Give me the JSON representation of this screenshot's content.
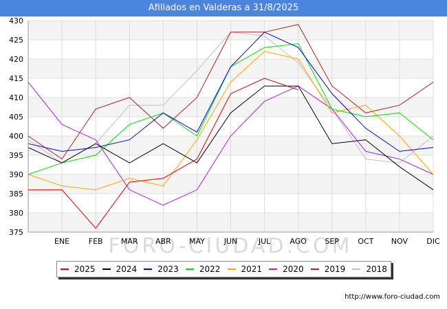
{
  "chart_data": {
    "type": "line",
    "title": "Afiliados en Valderas a 31/8/2025",
    "categories": [
      "",
      "ENE",
      "FEB",
      "MAR",
      "ABR",
      "MAY",
      "JUN",
      "JUL",
      "AGO",
      "SEP",
      "OCT",
      "NOV",
      "DIC"
    ],
    "ylim": [
      375,
      430
    ],
    "yticks": [
      375,
      380,
      385,
      390,
      395,
      400,
      405,
      410,
      415,
      420,
      425,
      430
    ],
    "grid": true,
    "legend_position": "bottom",
    "watermark": "FORO-CIUDAD.COM",
    "series": [
      {
        "name": "2025",
        "color": "#dd0000",
        "values": [
          386,
          386,
          376,
          388,
          389,
          394,
          411,
          415,
          412,
          null,
          null,
          null,
          null
        ]
      },
      {
        "name": "2024",
        "color": "#000000",
        "values": [
          397,
          393,
          398,
          393,
          398,
          393,
          406,
          413,
          413,
          398,
          399,
          392,
          386
        ]
      },
      {
        "name": "2023",
        "color": "#0000dd",
        "values": [
          398,
          396,
          397,
          399,
          406,
          401,
          418,
          427,
          423,
          411,
          402,
          396,
          397
        ]
      },
      {
        "name": "2022",
        "color": "#00dd00",
        "values": [
          390,
          393,
          395,
          403,
          406,
          400,
          418,
          423,
          424,
          407,
          405,
          406,
          399
        ]
      },
      {
        "name": "2021",
        "color": "#ffa500",
        "values": [
          390,
          387,
          386,
          389,
          387,
          399,
          414,
          422,
          420,
          406,
          408,
          400,
          390
        ]
      },
      {
        "name": "2020",
        "color": "#a020f0",
        "values": [
          414,
          403,
          399,
          386,
          382,
          386,
          400,
          409,
          413,
          407,
          396,
          394,
          390
        ]
      },
      {
        "name": "2019",
        "color": "#aa2222",
        "values": [
          400,
          394,
          407,
          410,
          402,
          410,
          427,
          427,
          429,
          413,
          406,
          408,
          414
        ]
      },
      {
        "name": "2018",
        "color": "#c0c0c0",
        "values": [
          399,
          393,
          398,
          408,
          408,
          417,
          427,
          426,
          419,
          407,
          394,
          393,
          400
        ]
      }
    ]
  },
  "footer": {
    "url": "http://www.foro-ciudad.com"
  }
}
